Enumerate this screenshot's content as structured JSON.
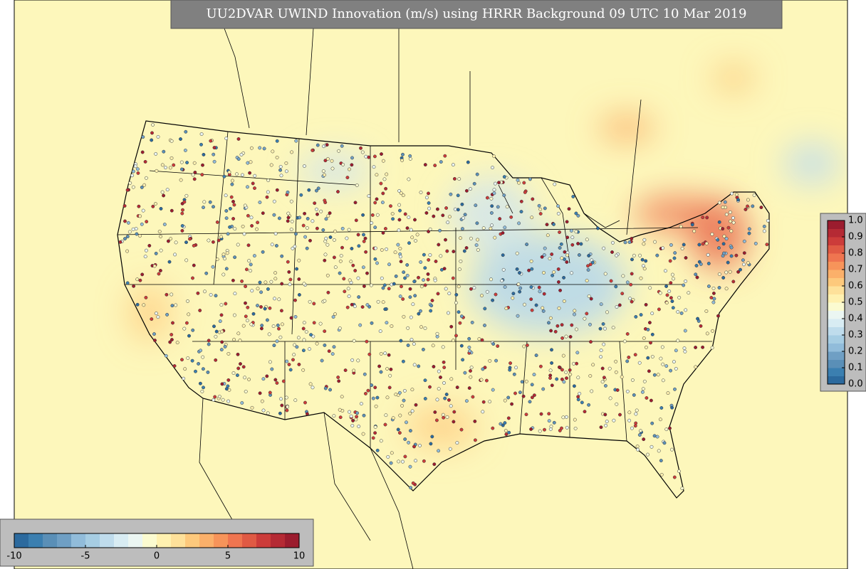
{
  "title": "UU2DVAR UWIND Innovation (m/s) using HRRR Background 09 UTC 10 Mar 2019",
  "colormap": [
    "#2c6a9e",
    "#3b7fb0",
    "#5a8fb7",
    "#6f9fc4",
    "#91bcda",
    "#a6cde3",
    "#bfdcec",
    "#d8ecf3",
    "#ebf6f2",
    "#fbfbd0",
    "#fff1b0",
    "#fee19a",
    "#fdc97c",
    "#fbb06a",
    "#f7945a",
    "#ef7550",
    "#e05a44",
    "#cc3c3a",
    "#b52a34",
    "#9b1c2e"
  ],
  "colorbar": {
    "lim": [
      -10,
      10
    ],
    "ticks": [
      -10,
      -5,
      0,
      5,
      10
    ]
  },
  "side_colorbar": {
    "lim": [
      0,
      1
    ],
    "ticks": [
      {
        "value": 0,
        "label": "0.0"
      },
      0.1,
      0.2,
      0.3,
      0.4,
      0.5,
      0.6,
      0.7,
      0.8,
      0.9,
      {
        "value": 1,
        "label": "1.0"
      }
    ]
  }
}
